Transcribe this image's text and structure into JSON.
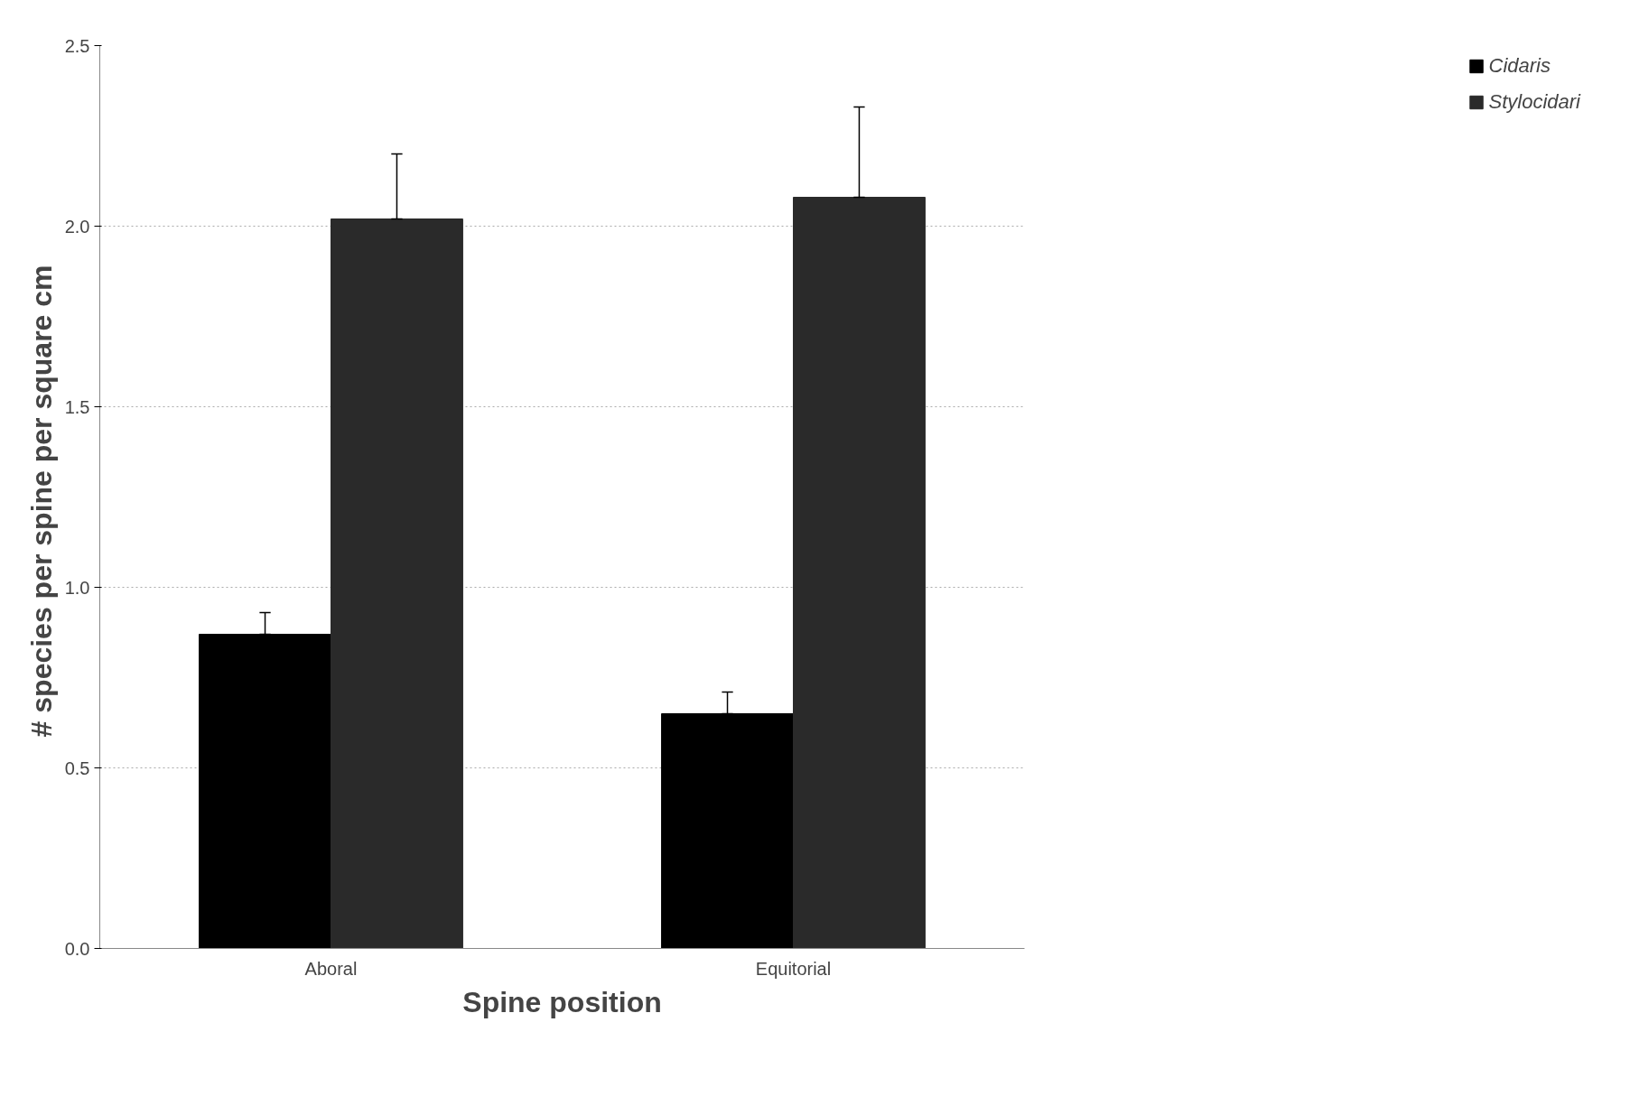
{
  "chart_data": {
    "type": "bar",
    "xlabel": "Spine position",
    "ylabel": "# species  per spine per square cm",
    "categories": [
      "Aboral",
      "Equitorial"
    ],
    "series": [
      {
        "name": "Cidaris",
        "color": "#000000",
        "values": [
          0.87,
          0.65
        ],
        "errors": [
          [
            0.87,
            0.93
          ],
          [
            0.65,
            0.71
          ]
        ]
      },
      {
        "name": "Stylocidari",
        "color": "#2a2a2a",
        "values": [
          2.02,
          2.08
        ],
        "errors": [
          [
            2.02,
            2.2
          ],
          [
            2.08,
            2.33
          ]
        ]
      }
    ],
    "ylim": [
      0,
      2.5
    ],
    "yticks": [
      {
        "value": 0,
        "label": "0.0"
      },
      {
        "value": 0.5,
        "label": "0.5"
      },
      {
        "value": 1,
        "label": "1.0"
      },
      {
        "value": 1.5,
        "label": "1.5"
      },
      {
        "value": 2,
        "label": "2.0"
      },
      {
        "value": 2.5,
        "label": "2.5"
      }
    ],
    "grid": "y",
    "legend": "right"
  }
}
